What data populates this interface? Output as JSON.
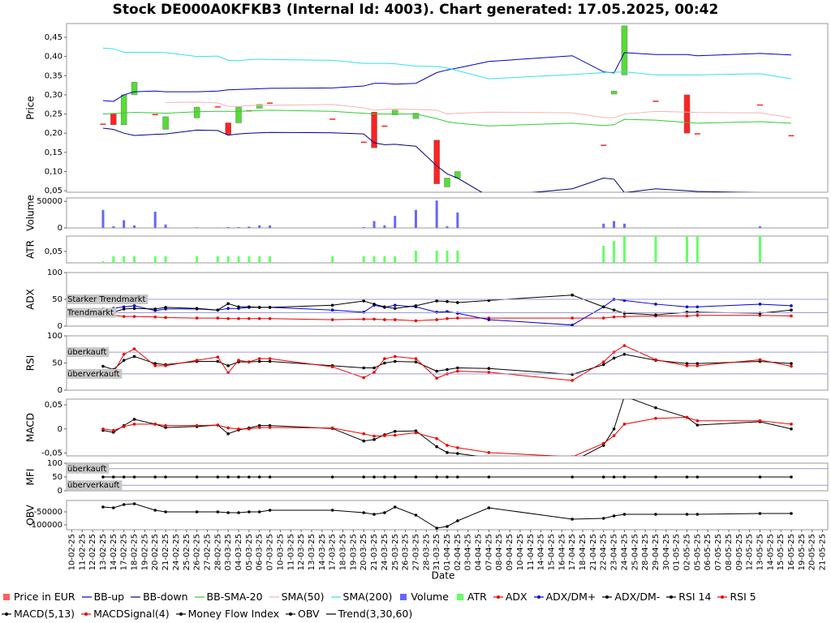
{
  "chart_data": {
    "type": "stock",
    "title": "Stock DE000A0KFKB3 (Internal Id: 4003). Chart generated: 17.05.2025, 00:42",
    "xlabel": "Date",
    "categories": [
      "10-02-25",
      "11-02-25",
      "12-02-25",
      "13-02-25",
      "14-02-25",
      "17-02-25",
      "18-02-25",
      "19-02-25",
      "20-02-25",
      "21-02-25",
      "24-02-25",
      "25-02-25",
      "26-02-25",
      "27-02-25",
      "28-02-25",
      "03-03-25",
      "04-03-25",
      "05-03-25",
      "06-03-25",
      "07-03-25",
      "10-03-25",
      "11-03-25",
      "12-03-25",
      "13-03-25",
      "14-03-25",
      "17-03-25",
      "18-03-25",
      "19-03-25",
      "20-03-25",
      "21-03-25",
      "24-03-25",
      "25-03-25",
      "26-03-25",
      "27-03-25",
      "28-03-25",
      "31-03-25",
      "01-04-25",
      "02-04-25",
      "03-04-25",
      "04-04-25",
      "07-04-25",
      "08-04-25",
      "09-04-25",
      "10-04-25",
      "11-04-25",
      "14-04-25",
      "15-04-25",
      "16-04-25",
      "17-04-25",
      "18-04-25",
      "21-04-25",
      "22-04-25",
      "23-04-25",
      "24-04-25",
      "25-04-25",
      "28-04-25",
      "29-04-25",
      "30-04-25",
      "01-05-25",
      "02-05-25",
      "05-05-25",
      "06-05-25",
      "07-05-25",
      "08-05-25",
      "09-05-25",
      "12-05-25",
      "13-05-25",
      "14-05-25",
      "15-05-25",
      "16-05-25",
      "19-05-25",
      "20-05-25",
      "21-05-25"
    ],
    "x": [
      "13-02-25",
      "14-02-25",
      "17-02-25",
      "18-02-25",
      "20-02-25",
      "21-02-25",
      "26-02-25",
      "28-02-25",
      "03-03-25",
      "04-03-25",
      "05-03-25",
      "06-03-25",
      "07-03-25",
      "17-03-25",
      "20-03-25",
      "21-03-25",
      "24-03-25",
      "25-03-25",
      "27-03-25",
      "31-03-25",
      "01-04-25",
      "02-04-25",
      "07-04-25",
      "17-04-25",
      "22-04-25",
      "23-04-25",
      "24-04-25",
      "29-04-25",
      "02-05-25",
      "05-05-25",
      "13-05-25",
      "16-05-25"
    ],
    "panels": [
      {
        "ylabel": "Price",
        "ylim": [
          0.046,
          0.486
        ],
        "yticks": [
          {
            "value": 0.05,
            "label": "0,05"
          },
          {
            "value": 0.1,
            "label": "0,10"
          },
          {
            "value": 0.15,
            "label": "0,15"
          },
          {
            "value": 0.2,
            "label": "0,20"
          },
          {
            "value": 0.25,
            "label": "0,25"
          },
          {
            "value": 0.3,
            "label": "0,30"
          },
          {
            "value": 0.35,
            "label": "0,35"
          },
          {
            "value": 0.4,
            "label": "0,40"
          },
          {
            "value": 0.45,
            "label": "0,45"
          }
        ],
        "series": [
          {
            "name": "Price in EUR",
            "style": "candle",
            "color": "#ff5f5f",
            "up_color": "#55dd33",
            "down_color": "#ff2222",
            "open": [
              0.225,
              0.252,
              0.222,
              0.3,
              0.25,
              0.21,
              0.24,
              0.27,
              0.227,
              0.227,
              0.26,
              0.265,
              0.28,
              0.238,
              0.178,
              0.255,
              0.22,
              0.248,
              0.238,
              0.182,
              0.06,
              0.083,
              null,
              null,
              0.17,
              0.302,
              0.352,
              0.285,
              0.3,
              0.2,
              0.275,
              0.195
            ],
            "close": [
              0.225,
              0.222,
              0.3,
              0.333,
              0.25,
              0.243,
              0.268,
              0.27,
              0.197,
              0.268,
              0.26,
              0.275,
              0.28,
              0.238,
              0.178,
              0.162,
              0.22,
              0.26,
              0.252,
              0.068,
              0.083,
              0.1,
              null,
              null,
              0.17,
              0.31,
              0.48,
              0.285,
              0.2,
              0.2,
              0.275,
              0.195
            ]
          },
          {
            "name": "BB-up",
            "style": "line",
            "color": "#0000cc",
            "values": [
              0.285,
              0.283,
              0.3,
              0.308,
              0.31,
              0.308,
              0.308,
              0.31,
              0.313,
              0.314,
              0.315,
              0.316,
              0.317,
              0.318,
              0.323,
              0.33,
              0.33,
              0.328,
              0.33,
              0.358,
              0.365,
              0.37,
              0.387,
              0.402,
              0.36,
              0.357,
              0.41,
              0.405,
              0.405,
              0.402,
              0.408,
              0.404
            ]
          },
          {
            "name": "BB-down",
            "style": "line",
            "color": "#000080",
            "values": [
              0.213,
              0.21,
              0.2,
              0.194,
              0.197,
              0.198,
              0.208,
              0.207,
              0.195,
              0.198,
              0.2,
              0.201,
              0.202,
              0.201,
              0.198,
              0.175,
              0.17,
              0.171,
              0.166,
              0.115,
              0.094,
              0.083,
              0.035,
              0.055,
              0.083,
              0.08,
              0.045,
              0.055,
              0.05,
              0.048,
              0.045,
              0.04
            ]
          },
          {
            "name": "BB-SMA-20",
            "style": "line",
            "color": "#33cc33",
            "values": [
              0.25,
              0.251,
              0.253,
              0.254,
              0.253,
              0.252,
              0.256,
              0.257,
              0.257,
              0.257,
              0.258,
              0.259,
              0.26,
              0.257,
              0.252,
              0.25,
              0.25,
              0.25,
              0.25,
              0.238,
              0.23,
              0.226,
              0.219,
              0.226,
              0.22,
              0.222,
              0.236,
              0.234,
              0.228,
              0.226,
              0.23,
              0.226
            ]
          },
          {
            "name": "SMA(50)",
            "style": "line",
            "color": "#f2b4b4",
            "values": [
              null,
              null,
              null,
              null,
              null,
              0.28,
              0.281,
              0.279,
              0.27,
              0.27,
              0.272,
              0.273,
              0.273,
              0.275,
              0.266,
              0.26,
              0.262,
              0.263,
              0.262,
              0.26,
              0.25,
              0.252,
              0.255,
              0.253,
              0.241,
              0.24,
              0.25,
              0.257,
              0.255,
              0.254,
              0.253,
              0.24
            ]
          },
          {
            "name": "SMA(200)",
            "style": "line",
            "color": "#33e0f0",
            "values": [
              0.422,
              0.42,
              0.411,
              0.411,
              0.411,
              0.41,
              0.4,
              0.401,
              0.39,
              0.389,
              0.392,
              0.393,
              0.392,
              0.39,
              0.382,
              0.382,
              0.382,
              0.381,
              0.375,
              0.374,
              0.37,
              0.363,
              0.342,
              0.353,
              0.358,
              0.359,
              0.36,
              0.352,
              0.352,
              0.352,
              0.355,
              0.342
            ]
          }
        ]
      },
      {
        "ylabel": "Volume",
        "ylim": [
          0,
          56450
        ],
        "yticks": [
          0,
          50000
        ],
        "series": [
          {
            "name": "Volume",
            "style": "bar",
            "color": "#6666ff",
            "values": [
              33900,
              3000,
              14500,
              4800,
              30600,
              6500,
              1000,
              500,
              1500,
              1500,
              2500,
              4800,
              4800,
              null,
              1500,
              13000,
              4800,
              22600,
              33900,
              51600,
              3000,
              29000,
              null,
              null,
              8000,
              13000,
              8000,
              null,
              null,
              null,
              3000,
              null
            ]
          }
        ]
      },
      {
        "ylabel": "ATR",
        "ylim": [
          0,
          0.118
        ],
        "yticks": [
          {
            "value": 0.05,
            "label": "0,05"
          }
        ],
        "series": [
          {
            "name": "ATR",
            "style": "bar",
            "color": "#66ff66",
            "values": [
              0.007,
              0.029,
              0.029,
              0.029,
              0.029,
              0.029,
              0.029,
              0.029,
              0.029,
              0.029,
              0.029,
              0.029,
              0.029,
              0.029,
              0.029,
              0.029,
              0.029,
              0.029,
              0.054,
              0.054,
              0.054,
              0.054,
              null,
              null,
              0.075,
              0.096,
              0.12,
              0.12,
              0.12,
              0.12,
              0.12,
              null
            ]
          }
        ]
      },
      {
        "ylabel": "ADX",
        "ylim": [
          0,
          100
        ],
        "yticks": [
          0,
          50,
          100
        ],
        "thresholds": [
          {
            "value": 50,
            "label": "Starker Trendmarkt"
          },
          {
            "value": 25,
            "label": "Trendmarkt"
          }
        ],
        "series": [
          {
            "name": "ADX",
            "style": "dotline",
            "color": "#ee0000",
            "values": [
              21,
              20,
              18,
              18,
              17,
              16,
              15,
              15,
              14,
              14,
              14,
              14,
              14,
              12,
              13,
              13,
              12,
              12,
              10,
              12,
              14,
              15,
              15,
              15,
              15,
              17,
              18,
              19,
              19,
              20,
              20,
              19
            ]
          },
          {
            "name": "ADX/DM+",
            "style": "dotline",
            "color": "#0000dd",
            "values": [
              32,
              33,
              36,
              38,
              29,
              32,
              32,
              30,
              33,
              33,
              35,
              35,
              35,
              30,
              26,
              39,
              35,
              39,
              36,
              26,
              27,
              24,
              12,
              2,
              36,
              50,
              48,
              41,
              36,
              36,
              41,
              38
            ]
          },
          {
            "name": "ADX/DM-",
            "style": "dotline",
            "color": "#000000",
            "values": [
              29,
              26,
              32,
              33,
              32,
              35,
              33,
              30,
              42,
              36,
              36,
              35,
              35,
              39,
              47,
              41,
              36,
              33,
              38,
              47,
              46,
              44,
              48,
              58,
              36,
              30,
              24,
              21,
              26,
              26,
              24,
              30
            ]
          }
        ]
      },
      {
        "ylabel": "RSI",
        "ylim": [
          0,
          100
        ],
        "yticks": [
          0,
          50,
          100
        ],
        "thresholds": [
          {
            "value": 70,
            "label": "überkauft"
          },
          {
            "value": 30,
            "label": "überverkauft"
          }
        ],
        "series": [
          {
            "name": "RSI 14",
            "style": "dotline",
            "color": "#000000",
            "values": [
              44,
              38,
              55,
              62,
              49,
              47,
              53,
              53,
              45,
              52,
              52,
              53,
              53,
              45,
              41,
              41,
              50,
              53,
              52,
              35,
              38,
              41,
              40,
              29,
              47,
              59,
              66,
              55,
              49,
              49,
              53,
              49
            ]
          },
          {
            "name": "RSI 5",
            "style": "dotline",
            "color": "#ee0000",
            "values": [
              35,
              32,
              66,
              76,
              45,
              45,
              55,
              61,
              32,
              55,
              52,
              58,
              58,
              43,
              23,
              33,
              58,
              62,
              58,
              22,
              30,
              35,
              33,
              18,
              52,
              70,
              82,
              56,
              45,
              45,
              56,
              44
            ]
          }
        ]
      },
      {
        "ylabel": "MACD",
        "ylim": [
          -0.056,
          0.062
        ],
        "yticks": [
          {
            "value": -0.05,
            "label": "-0,05"
          },
          0,
          {
            "value": 0.05,
            "label": "0,05"
          }
        ],
        "series": [
          {
            "name": "MACD(5,13)",
            "style": "dotline",
            "color": "#000000",
            "values": [
              -0.003,
              -0.007,
              0.007,
              0.02,
              0.01,
              0.003,
              0.005,
              0.008,
              -0.01,
              -0.002,
              0.002,
              0.007,
              0.007,
              0.001,
              -0.025,
              -0.022,
              -0.012,
              -0.005,
              -0.004,
              -0.037,
              -0.049,
              -0.051,
              -0.06,
              -0.068,
              -0.034,
              0,
              0.068,
              0.044,
              0.024,
              0.008,
              0.015,
              0
            ]
          },
          {
            "name": "MACDSignal(4)",
            "style": "dotline",
            "color": "#ee0000",
            "values": [
              0,
              -0.003,
              0.005,
              0.01,
              0.01,
              0.007,
              0.007,
              0.008,
              0.002,
              0,
              0,
              0.003,
              0.003,
              0.002,
              -0.01,
              -0.015,
              -0.014,
              -0.013,
              -0.008,
              -0.02,
              -0.034,
              -0.039,
              -0.049,
              -0.058,
              -0.03,
              -0.014,
              0.01,
              0.022,
              0.024,
              0.017,
              0.017,
              0.01
            ]
          }
        ]
      },
      {
        "ylabel": "MFI",
        "ylim": [
          0,
          100
        ],
        "yticks": [
          0,
          50,
          100
        ],
        "thresholds": [
          {
            "value": 80,
            "label": "überkauft"
          },
          {
            "value": 20,
            "label": "überverkauft"
          }
        ],
        "series": [
          {
            "name": "Money Flow Index",
            "style": "dotline",
            "color": "#000000",
            "values": [
              50,
              50,
              50,
              50,
              50,
              50,
              50,
              50,
              50,
              50,
              50,
              50,
              50,
              50,
              50,
              50,
              50,
              50,
              50,
              50,
              50,
              50,
              50,
              50,
              50,
              50,
              50,
              50,
              50,
              50,
              50,
              50
            ]
          }
        ]
      },
      {
        "ylabel": "OBV",
        "ylim": [
          -118750,
          -6250
        ],
        "yticks": [
          -100000,
          -50000
        ],
        "series": [
          {
            "name": "OBV",
            "style": "dotline",
            "color": "#000000",
            "values": [
              -31250,
              -34375,
              -21875,
              -18750,
              -43750,
              -50000,
              -50000,
              -50000,
              -53125,
              -53125,
              -50000,
              -50000,
              -43750,
              -43750,
              -53125,
              -59375,
              -53125,
              -31250,
              -62500,
              -112500,
              -106250,
              -84375,
              -34375,
              -78125,
              -75000,
              -65625,
              -59375,
              -59375,
              -59375,
              -59375,
              -56250,
              -56250
            ]
          },
          {
            "name": "Trend(3,30,60)",
            "style": "line",
            "color": "#000000"
          }
        ]
      }
    ]
  }
}
